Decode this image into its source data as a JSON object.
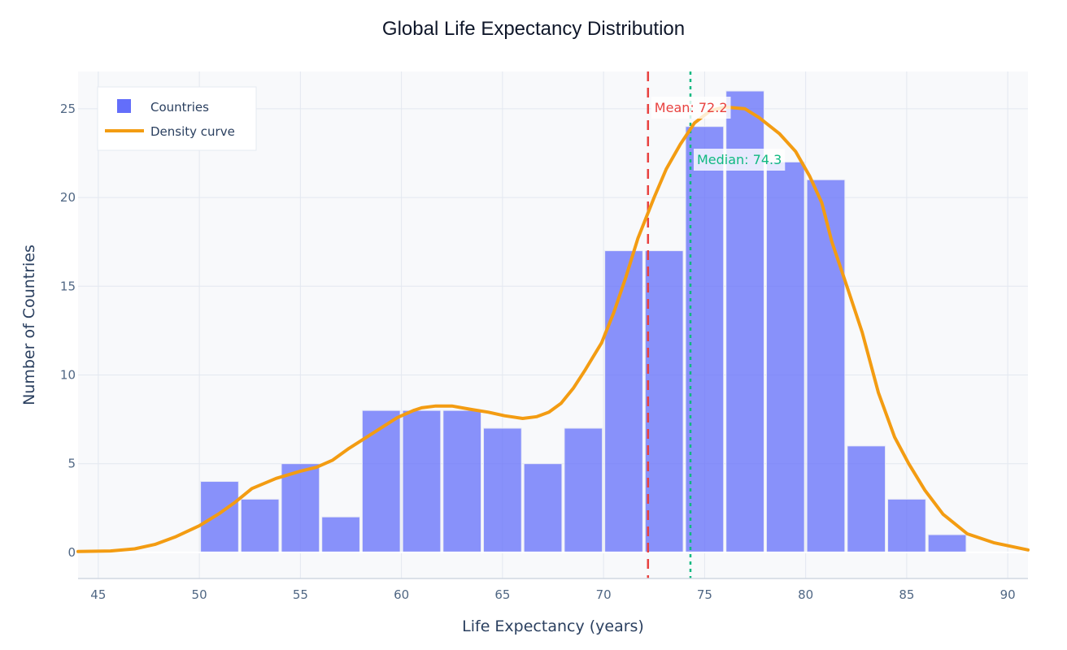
{
  "chart_data": {
    "type": "bar",
    "title": "Global Life Expectancy Distribution",
    "xlabel": "Life Expectancy (years)",
    "ylabel": "Number of Countries",
    "xlim": [
      44.0,
      91.0
    ],
    "ylim": [
      -1.47,
      27.1
    ],
    "xticks": [
      45,
      50,
      55,
      60,
      65,
      70,
      75,
      80,
      85,
      90
    ],
    "yticks": [
      0,
      5,
      10,
      15,
      20,
      25
    ],
    "grid": true,
    "legend_position": "top-left",
    "bin_width": 2,
    "series": [
      {
        "name": "Countries",
        "kind": "histogram",
        "color": "#636efa",
        "bin_starts": [
          50,
          52,
          54,
          56,
          58,
          60,
          62,
          64,
          66,
          68,
          70,
          72,
          74,
          76,
          78,
          80,
          82,
          84,
          86
        ],
        "values": [
          4,
          3,
          5,
          2,
          8,
          8,
          8,
          7,
          5,
          7,
          17,
          17,
          24,
          26,
          22,
          21,
          6,
          3,
          1
        ]
      },
      {
        "name": "Density curve",
        "kind": "line",
        "color": "#f39c12",
        "x": [
          44.0,
          45.6,
          46.8,
          47.8,
          48.8,
          50,
          51,
          51.8,
          52.6,
          53.8,
          55,
          55.8,
          56.6,
          57.4,
          58.6,
          59.8,
          60.6,
          61,
          61.7,
          62.5,
          63.5,
          64.3,
          65.1,
          66,
          66.7,
          67.3,
          67.9,
          68.5,
          69.1,
          69.9,
          70.5,
          71.1,
          71.7,
          72.5,
          73.1,
          73.8,
          74.5,
          75.3,
          76,
          77,
          77.7,
          78.7,
          79.5,
          80.2,
          80.8,
          81.3,
          82.1,
          82.8,
          83.6,
          84.4,
          85.1,
          85.9,
          86.8,
          88,
          89.3,
          91.0
        ],
        "y": [
          0.05,
          0.08,
          0.2,
          0.45,
          0.87,
          1.5,
          2.2,
          2.85,
          3.6,
          4.17,
          4.58,
          4.8,
          5.2,
          5.86,
          6.73,
          7.6,
          8.0,
          8.15,
          8.25,
          8.25,
          8.05,
          7.9,
          7.7,
          7.55,
          7.65,
          7.9,
          8.4,
          9.25,
          10.3,
          11.8,
          13.5,
          15.5,
          17.7,
          20.0,
          21.6,
          23.0,
          24.2,
          24.9,
          25.1,
          25.0,
          24.5,
          23.6,
          22.6,
          21.2,
          19.7,
          17.5,
          14.8,
          12.4,
          9.0,
          6.5,
          5.0,
          3.5,
          2.15,
          1.05,
          0.55,
          0.14
        ]
      }
    ],
    "annotations": [
      {
        "name": "mean",
        "label": "Mean: 72.2",
        "x": 72.2,
        "color": "#e8413f",
        "dash": "dash"
      },
      {
        "name": "median",
        "label": "Median: 74.3",
        "x": 74.3,
        "color": "#10b981",
        "dash": "dot"
      }
    ]
  },
  "legend": {
    "items": [
      {
        "label": "Countries",
        "symbol": "square",
        "color": "#636efa"
      },
      {
        "label": "Density curve",
        "symbol": "line",
        "color": "#f39c12"
      }
    ]
  }
}
